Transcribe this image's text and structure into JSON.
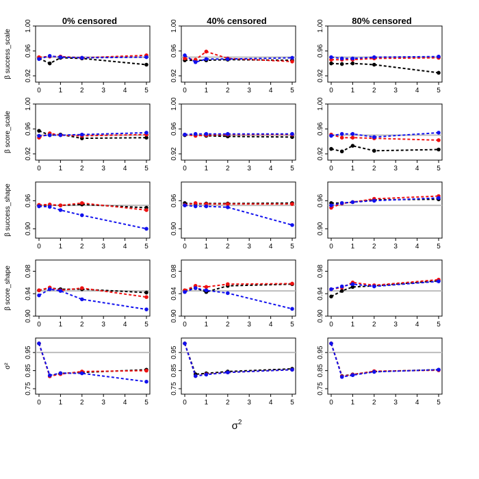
{
  "colors": {
    "black": "#000000",
    "red": "#ee1111",
    "blue": "#1111ee",
    "reference": "#bdbdbd",
    "axis": "#000000"
  },
  "column_titles": [
    "0% censored",
    "40% censored",
    "80% censored"
  ],
  "xlabel": "σ",
  "xlabel_superscript": "2",
  "row_labels": [
    "β success_scale",
    "β score_scale",
    "β success_shape",
    "β score_shape",
    "σ²"
  ],
  "chart_data": {
    "type": "line",
    "x": [
      0,
      0.5,
      1,
      2,
      5
    ],
    "x_ticks": [
      "0",
      "1",
      "2",
      "3",
      "4",
      "5"
    ],
    "series_names": [
      "black",
      "red",
      "blue"
    ],
    "rows": [
      {
        "ylim": [
          0.91,
          1.0
        ],
        "reference": 0.95,
        "y_ticks": [
          {
            "value": 0.92,
            "label": "0.92"
          },
          {
            "value": 0.96,
            "label": "0.96"
          },
          {
            "value": 1.0,
            "label": "1.00"
          }
        ],
        "panels": [
          {
            "black": [
              0.948,
              0.94,
              0.949,
              0.948,
              0.938
            ],
            "red": [
              0.95,
              0.951,
              0.951,
              0.949,
              0.953
            ],
            "blue": [
              0.947,
              0.952,
              0.95,
              0.949,
              0.95
            ]
          },
          {
            "black": [
              0.945,
              0.945,
              0.945,
              0.946,
              0.945
            ],
            "red": [
              0.948,
              0.946,
              0.959,
              0.948,
              0.943
            ],
            "blue": [
              0.953,
              0.942,
              0.947,
              0.947,
              0.949
            ]
          },
          {
            "black": [
              0.94,
              0.939,
              0.94,
              0.938,
              0.925
            ],
            "red": [
              0.946,
              0.946,
              0.946,
              0.948,
              0.949
            ],
            "blue": [
              0.95,
              0.948,
              0.948,
              0.95,
              0.951
            ]
          }
        ]
      },
      {
        "ylim": [
          0.91,
          1.0
        ],
        "reference": 0.95,
        "y_ticks": [
          {
            "value": 0.92,
            "label": "0.92"
          },
          {
            "value": 0.96,
            "label": "0.96"
          },
          {
            "value": 1.0,
            "label": "1.00"
          }
        ],
        "panels": [
          {
            "black": [
              0.957,
              0.95,
              0.951,
              0.945,
              0.946
            ],
            "red": [
              0.946,
              0.953,
              0.95,
              0.949,
              0.951
            ],
            "blue": [
              0.949,
              0.95,
              0.95,
              0.951,
              0.954
            ]
          },
          {
            "black": [
              0.95,
              0.95,
              0.949,
              0.948,
              0.947
            ],
            "red": [
              0.951,
              0.949,
              0.95,
              0.951,
              0.951
            ],
            "blue": [
              0.951,
              0.952,
              0.952,
              0.952,
              0.952
            ]
          },
          {
            "black": [
              0.928,
              0.924,
              0.933,
              0.925,
              0.927
            ],
            "red": [
              0.951,
              0.946,
              0.946,
              0.945,
              0.942
            ],
            "blue": [
              0.949,
              0.952,
              0.952,
              0.947,
              0.954
            ]
          }
        ]
      },
      {
        "ylim": [
          0.88,
          1.0
        ],
        "reference": 0.95,
        "y_ticks": [
          {
            "value": 0.9,
            "label": "0.90"
          },
          {
            "value": 0.96,
            "label": "0.96"
          }
        ],
        "panels": [
          {
            "black": [
              0.95,
              0.951,
              0.95,
              0.952,
              0.945
            ],
            "red": [
              0.951,
              0.952,
              0.95,
              0.955,
              0.94
            ],
            "blue": [
              0.948,
              0.947,
              0.94,
              0.929,
              0.9
            ]
          },
          {
            "black": [
              0.955,
              0.953,
              0.954,
              0.954,
              0.955
            ],
            "red": [
              0.951,
              0.955,
              0.953,
              0.953,
              0.953
            ],
            "blue": [
              0.95,
              0.948,
              0.948,
              0.946,
              0.908
            ]
          },
          {
            "black": [
              0.955,
              0.955,
              0.957,
              0.962,
              0.963
            ],
            "red": [
              0.945,
              0.954,
              0.957,
              0.964,
              0.97
            ],
            "blue": [
              0.95,
              0.955,
              0.957,
              0.96,
              0.966
            ]
          }
        ]
      },
      {
        "ylim": [
          0.9,
          1.0
        ],
        "reference": 0.945,
        "y_ticks": [
          {
            "value": 0.9,
            "label": "0.90"
          },
          {
            "value": 0.94,
            "label": "0.94"
          },
          {
            "value": 0.98,
            "label": "0.98"
          }
        ],
        "panels": [
          {
            "black": [
              0.946,
              0.95,
              0.948,
              0.948,
              0.942
            ],
            "red": [
              0.946,
              0.951,
              0.946,
              0.95,
              0.934
            ],
            "blue": [
              0.937,
              0.948,
              0.945,
              0.93,
              0.912
            ]
          },
          {
            "black": [
              0.946,
              0.95,
              0.943,
              0.954,
              0.957
            ],
            "red": [
              0.946,
              0.954,
              0.952,
              0.957,
              0.958
            ],
            "blue": [
              0.943,
              0.95,
              0.946,
              0.941,
              0.913
            ]
          },
          {
            "black": [
              0.935,
              0.945,
              0.952,
              0.954,
              0.963
            ],
            "red": [
              0.948,
              0.951,
              0.96,
              0.955,
              0.965
            ],
            "blue": [
              0.948,
              0.953,
              0.957,
              0.953,
              0.962
            ]
          }
        ]
      },
      {
        "ylim": [
          0.72,
          1.03
        ],
        "reference": 0.95,
        "y_ticks": [
          {
            "value": 0.75,
            "label": "0.75"
          },
          {
            "value": 0.85,
            "label": "0.85"
          },
          {
            "value": 0.95,
            "label": "0.95"
          }
        ],
        "panels": [
          {
            "black": [
              1.0,
              0.819,
              0.835,
              0.84,
              0.855
            ],
            "red": [
              1.0,
              0.819,
              0.831,
              0.845,
              0.85
            ],
            "blue": [
              1.0,
              0.824,
              0.836,
              0.835,
              0.789
            ]
          },
          {
            "black": [
              1.0,
              0.83,
              0.835,
              0.845,
              0.86
            ],
            "red": [
              1.0,
              0.82,
              0.83,
              0.84,
              0.855
            ],
            "blue": [
              1.0,
              0.82,
              0.828,
              0.84,
              0.855
            ]
          },
          {
            "black": [
              1.0,
              0.82,
              0.829,
              0.845,
              0.855
            ],
            "red": [
              1.0,
              0.818,
              0.828,
              0.847,
              0.852
            ],
            "blue": [
              1.0,
              0.815,
              0.825,
              0.843,
              0.855
            ]
          }
        ]
      }
    ]
  }
}
